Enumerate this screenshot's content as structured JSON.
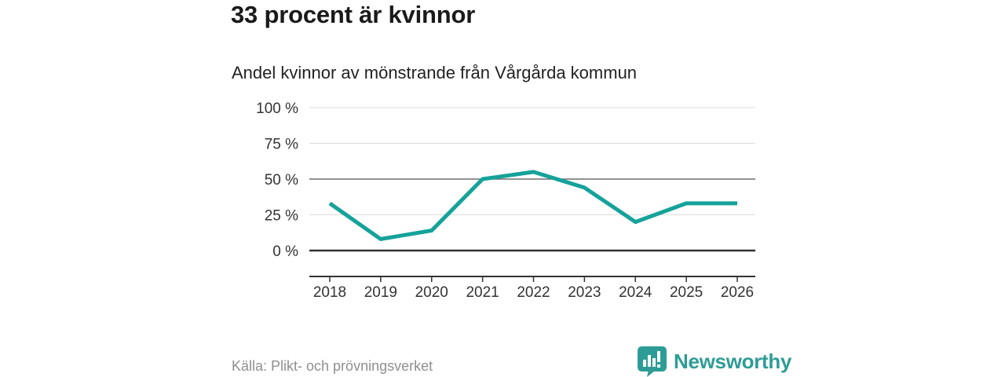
{
  "header": {
    "title": "33 procent är kvinnor",
    "subtitle": "Andel kvinnor av mönstrande från Vårgårda kommun"
  },
  "footer": {
    "source": "Källa: Plikt- och prövningsverket",
    "brand_name": "Newsworthy"
  },
  "colors": {
    "line": "#15a29a",
    "grid_light": "#dcdcdc",
    "grid_emphasis": "#6e6e6e",
    "axis_dark": "#333333",
    "title_text": "#1a1a1a",
    "source_text": "#8f8f8f",
    "brand_teal": "#2e9c96"
  },
  "chart_data": {
    "type": "line",
    "title": "33 procent är kvinnor",
    "subtitle": "Andel kvinnor av mönstrande från Vårgårda kommun",
    "x": [
      "2018",
      "2019",
      "2020",
      "2021",
      "2022",
      "2023",
      "2024",
      "2025",
      "2026"
    ],
    "values": [
      33,
      8,
      14,
      50,
      55,
      44,
      20,
      33,
      33
    ],
    "series_name": "Andel kvinnor",
    "xlabel": "",
    "ylabel": "",
    "ylim": [
      0,
      100
    ],
    "yticks": [
      0,
      25,
      50,
      75,
      100
    ],
    "ytick_format": "{v} %",
    "grid": "horizontal",
    "legend": "none",
    "emphasized_gridline": 50,
    "baseline_gridline": 0,
    "line_color": "#15a29a"
  }
}
